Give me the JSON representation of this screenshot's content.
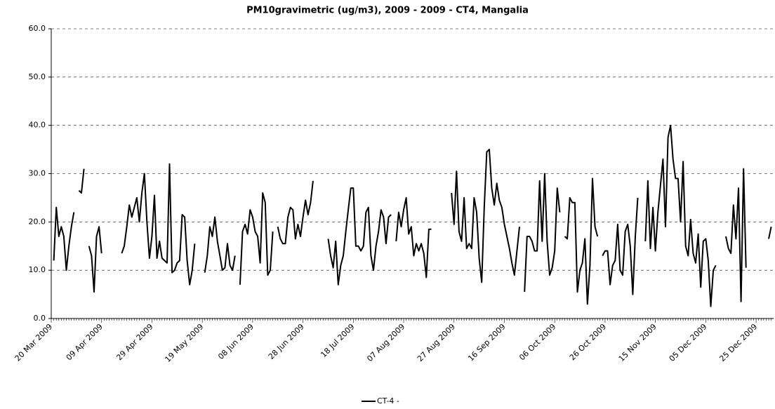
{
  "chart_data": {
    "type": "line",
    "title": "PM10gravimetric (ug/m3), 2009 - 2009 - CT4, Mangalia",
    "categories": [
      "20 Mar 2009",
      null,
      null,
      null,
      null,
      null,
      null,
      null,
      null,
      null,
      null,
      null,
      null,
      null,
      null,
      null,
      null,
      null,
      null,
      null,
      "09 Apr 2009",
      null,
      null,
      null,
      null,
      null,
      null,
      null,
      null,
      null,
      null,
      null,
      null,
      null,
      null,
      null,
      null,
      null,
      null,
      null,
      "29 Apr 2009",
      null,
      null,
      null,
      null,
      null,
      null,
      null,
      null,
      null,
      null,
      null,
      null,
      null,
      null,
      null,
      null,
      null,
      null,
      null,
      "19 May 2009",
      null,
      null,
      null,
      null,
      null,
      null,
      null,
      null,
      null,
      null,
      null,
      null,
      null,
      null,
      null,
      null,
      null,
      null,
      null,
      "08 Jun 2009",
      null,
      null,
      null,
      null,
      null,
      null,
      null,
      null,
      null,
      null,
      null,
      null,
      null,
      null,
      null,
      null,
      null,
      null,
      null,
      "28 Jun 2009",
      null,
      null,
      null,
      null,
      null,
      null,
      null,
      null,
      null,
      null,
      null,
      null,
      null,
      null,
      null,
      null,
      null,
      null,
      null,
      "18 Jul 2009",
      null,
      null,
      null,
      null,
      null,
      null,
      null,
      null,
      null,
      null,
      null,
      null,
      null,
      null,
      null,
      null,
      null,
      null,
      null,
      "07 Aug 2009",
      null,
      null,
      null,
      null,
      null,
      null,
      null,
      null,
      null,
      null,
      null,
      null,
      null,
      null,
      null,
      null,
      null,
      null,
      null,
      "27 Aug 2009",
      null,
      null,
      null,
      null,
      null,
      null,
      null,
      null,
      null,
      null,
      null,
      null,
      null,
      null,
      null,
      null,
      null,
      null,
      null,
      "16 Sep 2009",
      null,
      null,
      null,
      null,
      null,
      null,
      null,
      null,
      null,
      null,
      null,
      null,
      null,
      null,
      null,
      null,
      null,
      null,
      null,
      "06 Oct 2009",
      null,
      null,
      null,
      null,
      null,
      null,
      null,
      null,
      null,
      null,
      null,
      null,
      null,
      null,
      null,
      null,
      null,
      null,
      null,
      "26 Oct 2009",
      null,
      null,
      null,
      null,
      null,
      null,
      null,
      null,
      null,
      null,
      null,
      null,
      null,
      null,
      null,
      null,
      null,
      null,
      null,
      "15 Nov 2009",
      null,
      null,
      null,
      null,
      null,
      null,
      null,
      null,
      null,
      null,
      null,
      null,
      null,
      null,
      null,
      null,
      null,
      null,
      null,
      "05 Dec 2009",
      null,
      null,
      null,
      null,
      null,
      null,
      null,
      null,
      null,
      null,
      null,
      null,
      null,
      null,
      null,
      null,
      null,
      null,
      null,
      "25 Dec 2009",
      null,
      null,
      null,
      null,
      null,
      null
    ],
    "series": [
      {
        "name": "CT-4 -",
        "color": "#000000",
        "values": [
          null,
          12,
          23,
          17,
          19,
          17,
          10,
          15,
          19,
          22,
          null,
          26.5,
          26,
          31,
          null,
          15,
          13,
          5.5,
          17,
          19,
          13.5,
          null,
          null,
          null,
          null,
          null,
          null,
          null,
          13.5,
          15,
          19,
          23.5,
          21,
          23,
          25,
          20,
          26,
          30,
          20,
          12.5,
          17,
          25.5,
          12.5,
          16,
          12.5,
          12,
          11.5,
          32,
          9.5,
          10,
          11.5,
          12,
          21.5,
          21,
          12,
          7,
          10,
          15.5,
          null,
          null,
          null,
          9.5,
          13,
          19,
          17,
          21,
          16,
          13,
          10,
          10.5,
          15.5,
          11,
          10,
          13,
          null,
          7,
          18,
          19.5,
          17.5,
          22.5,
          21,
          18,
          17,
          11.5,
          26,
          24,
          9,
          10,
          18,
          null,
          19,
          16.5,
          15.5,
          15.5,
          21,
          23,
          22.5,
          16.5,
          19.5,
          17,
          21,
          24.5,
          21.5,
          24,
          28.5,
          null,
          null,
          null,
          null,
          null,
          16.5,
          13,
          10.5,
          16,
          7,
          11,
          13,
          18,
          22.5,
          27,
          27,
          15,
          15,
          14,
          15,
          22,
          23,
          13,
          10,
          15,
          18,
          22.5,
          21,
          15.5,
          21,
          21.5,
          null,
          16,
          22,
          19,
          22.5,
          25,
          17.5,
          19,
          13,
          15.5,
          14,
          15.5,
          13.5,
          8.5,
          18.5,
          18.5,
          null,
          null,
          null,
          null,
          null,
          null,
          null,
          26,
          19.5,
          30.5,
          18,
          16,
          25,
          14.5,
          15.5,
          14.5,
          25,
          22,
          12.5,
          7.5,
          23,
          34.5,
          35,
          27,
          23.5,
          28,
          24.5,
          23,
          19.5,
          17,
          14.5,
          11.5,
          9,
          14,
          19,
          null,
          5.5,
          17,
          17,
          16,
          14,
          14,
          28.5,
          16,
          30,
          16,
          9,
          10.5,
          14,
          27,
          22,
          null,
          17,
          16.5,
          25,
          24,
          24,
          5.5,
          10,
          11.5,
          16.5,
          3,
          11,
          29,
          19,
          17,
          null,
          13,
          14,
          14,
          7,
          11,
          12,
          19.5,
          10,
          9,
          18,
          19.5,
          15,
          5,
          17,
          25,
          null,
          null,
          16,
          28.5,
          14.5,
          23,
          14,
          22,
          27.5,
          33,
          19,
          37.5,
          40,
          33,
          29,
          29,
          20,
          32.5,
          15,
          13,
          20.5,
          13.5,
          11.5,
          17.5,
          6.5,
          16,
          16.5,
          12,
          2.5,
          10,
          11,
          null,
          null,
          null,
          17,
          14.5,
          13.5,
          23.5,
          16.5,
          27,
          3.5,
          31,
          10.5,
          null,
          null,
          null,
          null,
          null,
          null,
          null,
          null,
          16.5,
          19
        ]
      }
    ],
    "ylim": [
      0,
      60
    ],
    "yticks": [
      {
        "value": 0,
        "label": "0.0"
      },
      {
        "value": 10,
        "label": "10.0"
      },
      {
        "value": 20,
        "label": "20.0"
      },
      {
        "value": 30,
        "label": "30.0"
      },
      {
        "value": 40,
        "label": "40.0"
      },
      {
        "value": 50,
        "label": "50.0"
      },
      {
        "value": 60,
        "label": "60.0"
      }
    ],
    "grid": true,
    "legend": "bottom"
  }
}
